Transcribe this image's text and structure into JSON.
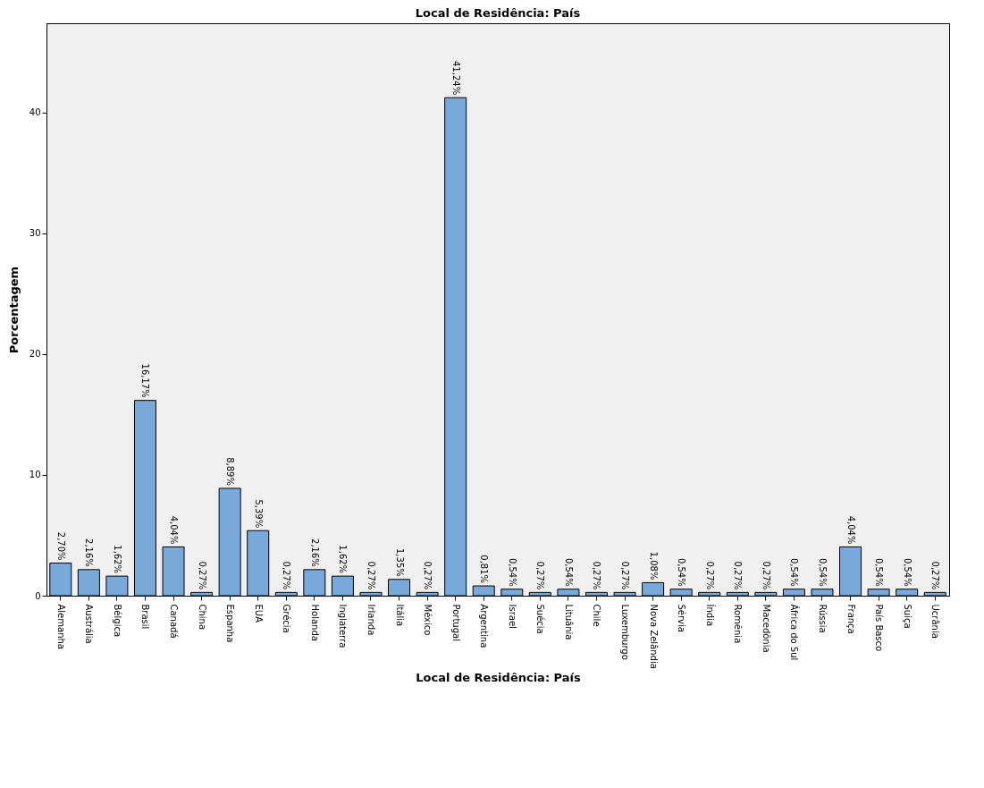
{
  "chart_data": {
    "type": "bar",
    "title": "Local de Residência: País",
    "xlabel": "Local de Residência: País",
    "ylabel": "Porcentagem",
    "categories": [
      "Alemanha",
      "Austrália",
      "Bélgica",
      "Brasil",
      "Canadá",
      "China",
      "Espanha",
      "EUA",
      "Grécia",
      "Holanda",
      "Inglaterra",
      "Irlanda",
      "Itália",
      "México",
      "Portugal",
      "Argentina",
      "Israel",
      "Suécia",
      "Lituânia",
      "Chile",
      "Luxemburgo",
      "Nova Zelândia",
      "Sérvia",
      "Índia",
      "Romênia",
      "Macedônia",
      "África do Sul",
      "Rússia",
      "França",
      "País Basco",
      "Suiça",
      "Ucrânia"
    ],
    "values": [
      2.7,
      2.16,
      1.62,
      16.17,
      4.04,
      0.27,
      8.89,
      5.39,
      0.27,
      2.16,
      1.62,
      0.27,
      1.35,
      0.27,
      41.24,
      0.81,
      0.54,
      0.27,
      0.54,
      0.27,
      0.27,
      1.08,
      0.54,
      0.27,
      0.27,
      0.27,
      0.54,
      0.54,
      4.04,
      0.54,
      0.54,
      0.27
    ],
    "value_labels": [
      "2,70%",
      "2,16%",
      "1,62%",
      "16,17%",
      "4,04%",
      "0,27%",
      "8,89%",
      "5,39%",
      "0,27%",
      "2,16%",
      "1,62%",
      "0,27%",
      "1,35%",
      "0,27%",
      "41,24%",
      "0,81%",
      "0,54%",
      "0,27%",
      "0,54%",
      "0,27%",
      "0,27%",
      "1,08%",
      "0,54%",
      "0,27%",
      "0,27%",
      "0,27%",
      "0,54%",
      "0,54%",
      "4,04%",
      "0,54%",
      "0,54%",
      "0,27%"
    ],
    "color": "#79a9d9",
    "ylim": [
      0,
      47.4
    ],
    "yticks": [
      0,
      10,
      20,
      30,
      40
    ],
    "grid": false
  }
}
